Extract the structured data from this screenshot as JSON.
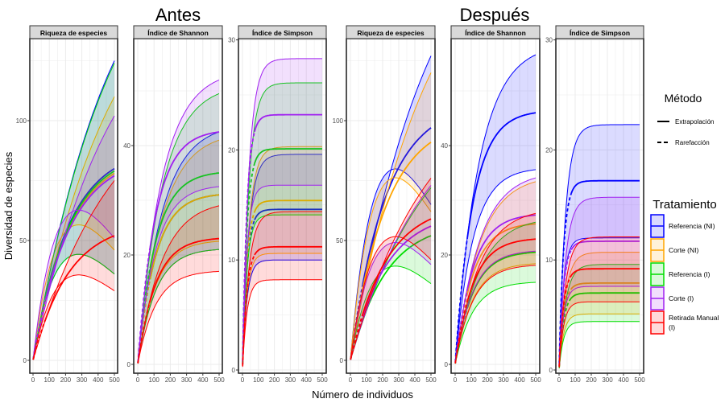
{
  "titles": {
    "before": "Antes",
    "after": "Después"
  },
  "ylabel": "Diversidad de especies",
  "xlabel": "Número de individuos",
  "legend": {
    "method_title": "Método",
    "methods": [
      {
        "label": "Extrapolación",
        "style": "solid"
      },
      {
        "label": "Rarefacción",
        "style": "dashed"
      }
    ],
    "treatment_title": "Tratamiento",
    "treatments": [
      {
        "label": "Referencia (NI)",
        "color": "#0000ff"
      },
      {
        "label": "Corte (NI)",
        "color": "#ffa500"
      },
      {
        "label": "Referencia (I)",
        "color": "#00dd00"
      },
      {
        "label": "Corte (I)",
        "color": "#a020f0"
      },
      {
        "label": "Retirada Manual (I)",
        "color": "#ff0000"
      }
    ]
  },
  "chart_data": [
    {
      "type": "line",
      "period": "Antes",
      "title": "Riqueza de especies",
      "xlim": [
        0,
        500
      ],
      "xticks": [
        0,
        100,
        200,
        300,
        400,
        500
      ],
      "yticks": [
        0,
        50,
        100
      ],
      "grid": true,
      "series": [
        {
          "name": "Referencia (NI)",
          "at_500": {
            "estimate": 80,
            "lower": 36,
            "upper": 125
          }
        },
        {
          "name": "Corte (NI)",
          "at_500": {
            "estimate": 78,
            "lower": 46,
            "upper": 110
          }
        },
        {
          "name": "Referencia (I)",
          "at_500": {
            "estimate": 79,
            "lower": 36,
            "upper": 124
          }
        },
        {
          "name": "Corte (I)",
          "at_500": {
            "estimate": 77,
            "lower": 51,
            "upper": 102
          }
        },
        {
          "name": "Retirada Manual (I)",
          "at_500": {
            "estimate": 52,
            "lower": 29,
            "upper": 75
          }
        }
      ]
    },
    {
      "type": "line",
      "period": "Antes",
      "title": "Índice de Shannon",
      "xlim": [
        0,
        500
      ],
      "xticks": [
        0,
        100,
        200,
        300,
        400,
        500
      ],
      "yticks": [
        0,
        20,
        40
      ],
      "grid": true,
      "series": [
        {
          "name": "Referencia (NI)",
          "at_500": {
            "estimate": 31,
            "lower": 21,
            "upper": 42.5
          }
        },
        {
          "name": "Corte (NI)",
          "at_500": {
            "estimate": 31,
            "lower": 22.5,
            "upper": 41
          }
        },
        {
          "name": "Referencia (I)",
          "at_500": {
            "estimate": 35,
            "lower": 21,
            "upper": 49.5
          }
        },
        {
          "name": "Corte (I)",
          "at_500": {
            "estimate": 42.5,
            "lower": 32.5,
            "upper": 52
          }
        },
        {
          "name": "Retirada Manual (I)",
          "at_500": {
            "estimate": 23,
            "lower": 17,
            "upper": 29
          }
        }
      ]
    },
    {
      "type": "line",
      "period": "Antes",
      "title": "Índice de Simpson",
      "xlim": [
        0,
        500
      ],
      "xticks": [
        0,
        100,
        200,
        300,
        400,
        500
      ],
      "yticks": [
        0,
        10,
        20,
        30
      ],
      "grid": true,
      "series": [
        {
          "name": "Referencia (NI)",
          "at_500": {
            "estimate": 14.6,
            "lower": 10.0,
            "upper": 19.6
          }
        },
        {
          "name": "Corte (NI)",
          "at_500": {
            "estimate": 15.4,
            "lower": 10.6,
            "upper": 20.3
          }
        },
        {
          "name": "Referencia (I)",
          "at_500": {
            "estimate": 20.1,
            "lower": 14.1,
            "upper": 26.1
          }
        },
        {
          "name": "Corte (I)",
          "at_500": {
            "estimate": 23.2,
            "lower": 16.8,
            "upper": 28.3
          }
        },
        {
          "name": "Retirada Manual (I)",
          "at_500": {
            "estimate": 11.2,
            "lower": 8.2,
            "upper": 14.4
          }
        }
      ]
    },
    {
      "type": "line",
      "period": "Después",
      "title": "Riqueza de especies",
      "xlim": [
        0,
        500
      ],
      "xticks": [
        0,
        100,
        200,
        300,
        400,
        500
      ],
      "yticks": [
        0,
        50,
        100
      ],
      "grid": true,
      "series": [
        {
          "name": "Referencia (NI)",
          "at_500": {
            "estimate": 97,
            "lower": 65,
            "upper": 127
          }
        },
        {
          "name": "Corte (NI)",
          "at_500": {
            "estimate": 91,
            "lower": 62,
            "upper": 120
          }
        },
        {
          "name": "Referencia (I)",
          "at_500": {
            "estimate": 52,
            "lower": 32,
            "upper": 72
          }
        },
        {
          "name": "Corte (I)",
          "at_500": {
            "estimate": 56,
            "lower": 40,
            "upper": 73
          }
        },
        {
          "name": "Retirada Manual (I)",
          "at_500": {
            "estimate": 59,
            "lower": 42,
            "upper": 76
          }
        }
      ]
    },
    {
      "type": "line",
      "period": "Después",
      "title": "Índice de Shannon",
      "xlim": [
        0,
        500
      ],
      "xticks": [
        0,
        100,
        200,
        300,
        400,
        500
      ],
      "yticks": [
        0,
        20,
        40
      ],
      "grid": true,
      "series": [
        {
          "name": "Referencia (NI)",
          "at_500": {
            "estimate": 46,
            "lower": 35.6,
            "upper": 56.6
          }
        },
        {
          "name": "Corte (NI)",
          "at_500": {
            "estimate": 25.7,
            "lower": 18.4,
            "upper": 33.4
          }
        },
        {
          "name": "Referencia (I)",
          "at_500": {
            "estimate": 20.5,
            "lower": 15,
            "upper": 26
          }
        },
        {
          "name": "Corte (I)",
          "at_500": {
            "estimate": 27.3,
            "lower": 20.7,
            "upper": 34.1
          }
        },
        {
          "name": "Retirada Manual (I)",
          "at_500": {
            "estimate": 22.9,
            "lower": 18.1,
            "upper": 27.6
          }
        }
      ]
    },
    {
      "type": "line",
      "period": "Después",
      "title": "Índice de Simpson",
      "xlim": [
        0,
        500
      ],
      "xticks": [
        0,
        100,
        200,
        300,
        400,
        500
      ],
      "yticks": [
        0,
        10,
        20,
        30
      ],
      "grid": true,
      "series": [
        {
          "name": "Referencia (NI)",
          "at_500": {
            "estimate": 17.2,
            "lower": 12.0,
            "upper": 22.3
          }
        },
        {
          "name": "Corte (NI)",
          "at_500": {
            "estimate": 7.9,
            "lower": 5.1,
            "upper": 10.7
          }
        },
        {
          "name": "Referencia (I)",
          "at_500": {
            "estimate": 7.0,
            "lower": 4.4,
            "upper": 9.6
          }
        },
        {
          "name": "Corte (I)",
          "at_500": {
            "estimate": 11.7,
            "lower": 7.6,
            "upper": 15.7
          }
        },
        {
          "name": "Retirada Manual (I)",
          "at_500": {
            "estimate": 9.2,
            "lower": 6.2,
            "upper": 12.1
          }
        }
      ]
    }
  ]
}
